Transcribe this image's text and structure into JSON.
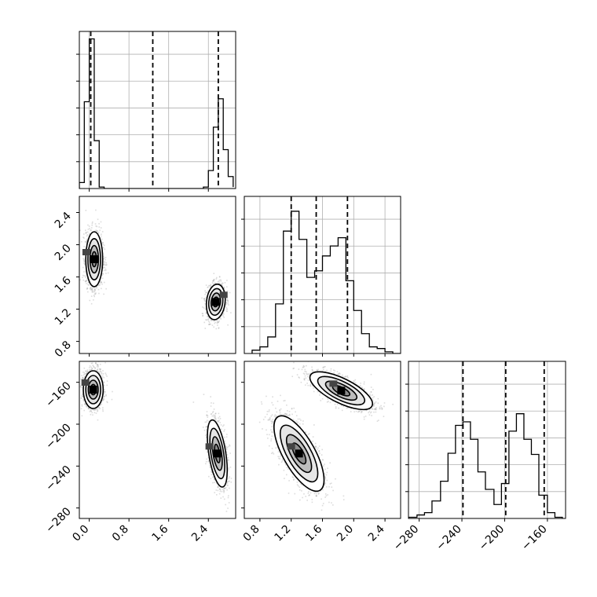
{
  "chart_data": {
    "type": "corner",
    "title": "",
    "parameters": [
      "",
      "",
      ""
    ],
    "grid": true,
    "colors": {
      "line": "#000000",
      "grid": "#b0b0b0",
      "density": "#000000"
    },
    "panels": [
      {
        "kind": "histogram",
        "row": 0,
        "col": 0,
        "x_range": [
          -0.2,
          2.95
        ],
        "x_ticks": [
          0.0,
          0.8,
          1.6,
          2.4
        ],
        "bin_edges": [
          -0.2,
          -0.1,
          0.0,
          0.1,
          0.2,
          0.3,
          0.4,
          0.5,
          0.6,
          0.7,
          0.8,
          0.9,
          1.0,
          1.1,
          1.2,
          1.3,
          1.4,
          1.5,
          1.6,
          1.7,
          1.8,
          1.9,
          2.0,
          2.1,
          2.2,
          2.3,
          2.4,
          2.5,
          2.6,
          2.7,
          2.8,
          2.9
        ],
        "counts": [
          4,
          58,
          100,
          32,
          1,
          0,
          0,
          0,
          0,
          0,
          0,
          0,
          0,
          0,
          0,
          0,
          0,
          0,
          0,
          0,
          0,
          0,
          0,
          0,
          0,
          1,
          12,
          41,
          60,
          26,
          8,
          1
        ],
        "ylim": [
          0,
          105
        ],
        "quantiles": [
          0.03,
          1.28,
          2.6
        ]
      },
      {
        "kind": "histogram",
        "row": 1,
        "col": 1,
        "x_range": [
          0.6,
          2.6
        ],
        "x_ticks": [
          0.8,
          1.2,
          1.6,
          2.0,
          2.4
        ],
        "bin_edges": [
          0.7,
          0.8,
          0.9,
          1.0,
          1.1,
          1.2,
          1.3,
          1.4,
          1.5,
          1.6,
          1.7,
          1.8,
          1.9,
          2.0,
          2.1,
          2.2,
          2.3,
          2.4,
          2.5,
          2.6
        ],
        "counts": [
          2,
          4,
          10,
          30,
          74,
          86,
          69,
          46,
          50,
          59,
          65,
          70,
          44,
          26,
          12,
          4,
          3,
          1,
          0
        ],
        "ylim": [
          0,
          95
        ],
        "quantiles": [
          1.2,
          1.52,
          1.92
        ]
      },
      {
        "kind": "histogram",
        "row": 2,
        "col": 2,
        "x_range": [
          -290,
          -143
        ],
        "x_ticks": [
          -280,
          -240,
          -200,
          -160
        ],
        "bin_edges": [
          -290,
          -282,
          -275,
          -268,
          -260,
          -253,
          -246,
          -239,
          -232,
          -225,
          -218,
          -210,
          -203,
          -196,
          -189,
          -182,
          -175,
          -168,
          -160,
          -153,
          -146
        ],
        "counts": [
          1,
          3,
          5,
          15,
          32,
          56,
          80,
          83,
          68,
          40,
          25,
          12,
          30,
          75,
          90,
          68,
          55,
          20,
          5,
          1
        ],
        "ylim": [
          0,
          135
        ],
        "quantiles": [
          -239,
          -199,
          -163
        ]
      },
      {
        "kind": "density",
        "row": 1,
        "col": 0,
        "x_range": [
          -0.2,
          2.95
        ],
        "y_range": [
          0.65,
          2.6
        ],
        "y_ticks": [
          0.8,
          1.2,
          1.6,
          2.0,
          2.4
        ],
        "modes": [
          {
            "center": [
              0.1,
              1.82
            ],
            "sigma": [
              0.085,
              0.17
            ],
            "rho": 0.0,
            "weight": 1.0
          },
          {
            "center": [
              2.55,
              1.29
            ],
            "sigma": [
              0.095,
              0.11
            ],
            "rho": 0.15,
            "weight": 0.8
          }
        ]
      },
      {
        "kind": "density",
        "row": 2,
        "col": 0,
        "x_range": [
          -0.2,
          2.95
        ],
        "y_range": [
          -290,
          -140
        ],
        "y_ticks": [
          -280,
          -240,
          -200,
          -160
        ],
        "modes": [
          {
            "center": [
              0.08,
              -167
            ],
            "sigma": [
              0.1,
              9
            ],
            "rho": 0.0,
            "weight": 1.0
          },
          {
            "center": [
              2.58,
              -228
            ],
            "sigma": [
              0.1,
              16
            ],
            "rho": -0.5,
            "weight": 0.85
          }
        ]
      },
      {
        "kind": "density",
        "row": 2,
        "col": 1,
        "x_range": [
          0.6,
          2.6
        ],
        "y_range": [
          -290,
          -140
        ],
        "modes": [
          {
            "center": [
              1.3,
              -228
            ],
            "sigma": [
              0.16,
              18
            ],
            "rho": -0.7,
            "weight": 1.0
          },
          {
            "center": [
              1.84,
              -168
            ],
            "sigma": [
              0.2,
              9
            ],
            "rho": -0.7,
            "weight": 1.0
          }
        ]
      }
    ]
  }
}
